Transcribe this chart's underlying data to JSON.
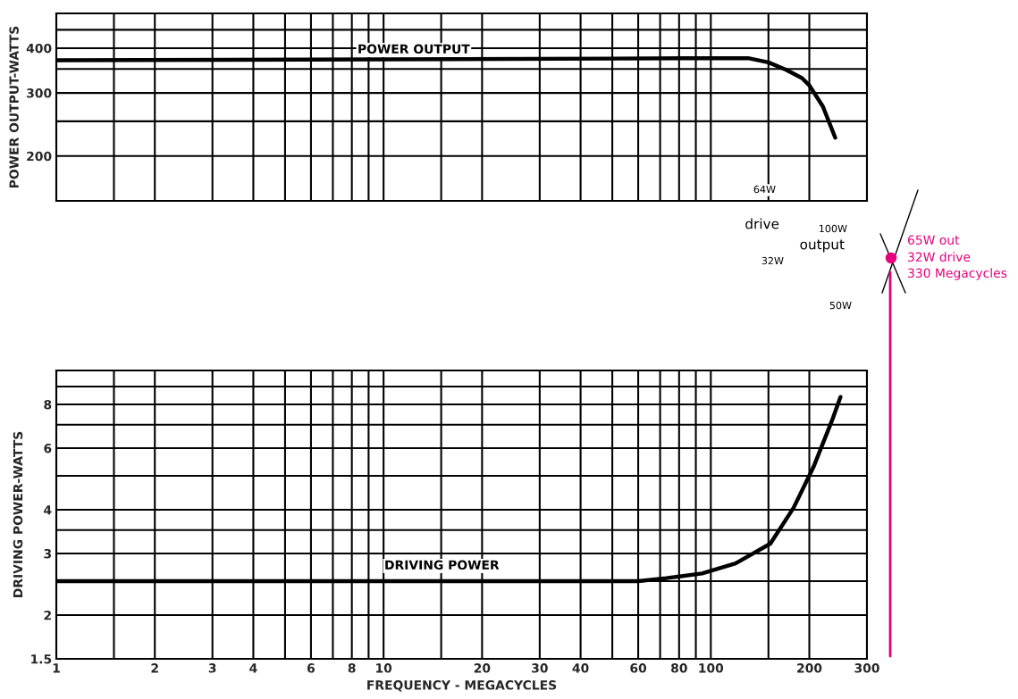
{
  "chart_data": [
    {
      "type": "line",
      "ylabel": "POWER OUTPUT-WATTS",
      "log": "xy",
      "grid": true,
      "marker": "none",
      "line_style": "solid",
      "tick_labels": "y",
      "xlim": [
        1,
        300
      ],
      "xticks": [
        1,
        {
          "value": 1.5,
          "label": null
        },
        2,
        3,
        4,
        {
          "value": 5,
          "label": null
        },
        6,
        {
          "value": 7,
          "label": null
        },
        8,
        {
          "value": 9,
          "label": null
        },
        10,
        {
          "value": 15,
          "label": null
        },
        20,
        30,
        40,
        {
          "value": 50,
          "label": null
        },
        60,
        {
          "value": 70,
          "label": null
        },
        80,
        {
          "value": 90,
          "label": null
        },
        100,
        {
          "value": 150,
          "label": null
        },
        200,
        300
      ],
      "ylim": [
        150,
        500
      ],
      "yticks": [
        {
          "value": 150,
          "label": null
        },
        200,
        {
          "value": 250,
          "label": null
        },
        300,
        {
          "value": 350,
          "label": null
        },
        400,
        {
          "value": 450,
          "label": null
        },
        {
          "value": 500,
          "label": null
        }
      ],
      "series": [
        {
          "color": "#000000",
          "x": [
            1,
            10,
            50,
            100,
            130,
            150,
            170,
            190,
            200,
            220,
            240
          ],
          "values": [
            370,
            372,
            374,
            375,
            375,
            365,
            348,
            330,
            315,
            275,
            225
          ]
        }
      ],
      "annotations": [
        "POWER OUTPUT",
        "64W",
        "drive",
        "32W",
        "100W",
        "output",
        "50W",
        "65W out",
        "32W drive",
        "330 Megacycles"
      ]
    },
    {
      "type": "line",
      "xlabel": "FREQUENCY - MEGACYCLES",
      "ylabel": "DRIVING POWER-WATTS",
      "log": "xy",
      "grid": true,
      "marker": "none",
      "line_style": "solid",
      "xlim": [
        1,
        300
      ],
      "xticks": [
        1,
        {
          "value": 1.5,
          "label": null
        },
        2,
        3,
        4,
        {
          "value": 5,
          "label": null
        },
        6,
        {
          "value": 7,
          "label": null
        },
        8,
        {
          "value": 9,
          "label": null
        },
        10,
        {
          "value": 15,
          "label": null
        },
        20,
        30,
        40,
        {
          "value": 50,
          "label": null
        },
        60,
        {
          "value": 70,
          "label": null
        },
        80,
        {
          "value": 90,
          "label": null
        },
        100,
        {
          "value": 150,
          "label": null
        },
        200,
        300
      ],
      "ylim": [
        1.5,
        10
      ],
      "yticks": [
        1.5,
        2,
        {
          "value": 2.5,
          "label": null
        },
        3,
        {
          "value": 3.5,
          "label": null
        },
        4,
        {
          "value": 5,
          "label": null
        },
        6,
        {
          "value": 7,
          "label": null
        },
        8,
        {
          "value": 9,
          "label": null
        },
        {
          "value": 10,
          "label": null
        }
      ],
      "series": [
        {
          "color": "#000000",
          "x": [
            1,
            10,
            30,
            60,
            73,
            94,
            119,
            152,
            179,
            206,
            236,
            249
          ],
          "values": [
            2.5,
            2.5,
            2.5,
            2.5,
            2.55,
            2.63,
            2.81,
            3.2,
            4.05,
            5.3,
            7.3,
            8.4
          ]
        }
      ],
      "annotations": [
        "DRIVING POWER"
      ]
    }
  ]
}
